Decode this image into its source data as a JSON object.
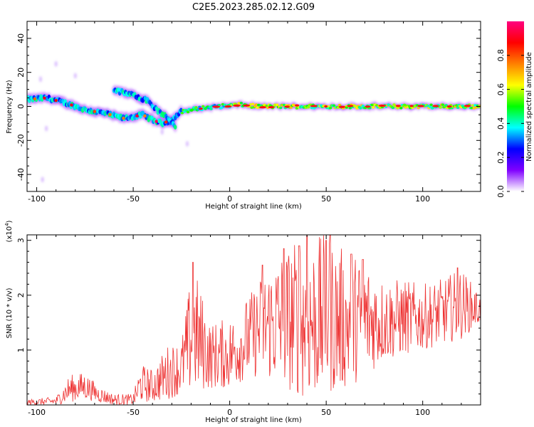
{
  "title": "C2E5.2023.285.02.12.G09",
  "chart_data": [
    {
      "type": "heatmap",
      "title": "C2E5.2023.285.02.12.G09",
      "xlabel": "Height of straight line (km)",
      "ylabel": "Frequency (Hz)",
      "xlim": [
        -105,
        130
      ],
      "ylim": [
        -50,
        50
      ],
      "xticks": [
        -100,
        -50,
        0,
        50,
        100
      ],
      "yticks": [
        -40,
        -20,
        0,
        20,
        40
      ],
      "colorbar": {
        "label": "Normalized spectral amplitude",
        "range": [
          0,
          1
        ],
        "ticks": [
          0.0,
          0.2,
          0.4,
          0.6,
          0.8
        ],
        "tick_labels": [
          "0.0",
          "0.2",
          "0.4",
          "0.6",
          "0.8"
        ],
        "colormap": [
          "#ffffff",
          "#8000ff",
          "#0000ff",
          "#00ffff",
          "#00ff00",
          "#ffff00",
          "#ff8000",
          "#ff0000",
          "#ff0080"
        ]
      },
      "main_track": [
        {
          "x": -105,
          "y": 4
        },
        {
          "x": -95,
          "y": 5
        },
        {
          "x": -85,
          "y": 2
        },
        {
          "x": -75,
          "y": -2
        },
        {
          "x": -65,
          "y": -4
        },
        {
          "x": -55,
          "y": -7
        },
        {
          "x": -45,
          "y": -5
        },
        {
          "x": -40,
          "y": -8
        },
        {
          "x": -35,
          "y": -10
        },
        {
          "x": -30,
          "y": -8
        },
        {
          "x": -25,
          "y": -3
        },
        {
          "x": -15,
          "y": -1
        },
        {
          "x": -5,
          "y": 0
        },
        {
          "x": 5,
          "y": 1
        },
        {
          "x": 15,
          "y": 0
        },
        {
          "x": 30,
          "y": 0
        },
        {
          "x": 50,
          "y": 0
        },
        {
          "x": 70,
          "y": 0
        },
        {
          "x": 90,
          "y": 0
        },
        {
          "x": 110,
          "y": 0
        },
        {
          "x": 130,
          "y": 0
        }
      ],
      "secondary_track": [
        {
          "x": -60,
          "y": 10
        },
        {
          "x": -55,
          "y": 8
        },
        {
          "x": -48,
          "y": 6
        },
        {
          "x": -42,
          "y": 3
        },
        {
          "x": -37,
          "y": -3
        },
        {
          "x": -32,
          "y": -7
        },
        {
          "x": -28,
          "y": -12
        }
      ],
      "scattered_points": [
        {
          "x": -90,
          "y": 25
        },
        {
          "x": -98,
          "y": 16
        },
        {
          "x": -95,
          "y": -13
        },
        {
          "x": -97,
          "y": -43
        },
        {
          "x": -80,
          "y": 18
        },
        {
          "x": -22,
          "y": -22
        },
        {
          "x": -35,
          "y": -15
        }
      ]
    },
    {
      "type": "line",
      "xlabel": "Height of straight line (km)",
      "ylabel": "SNR (10 * v/v)",
      "y_multiplier_label": "(x10",
      "y_multiplier_exp": "4",
      "y_multiplier_close": ")",
      "xlim": [
        -105,
        130
      ],
      "ylim": [
        0,
        3.1
      ],
      "xticks": [
        -100,
        -50,
        0,
        50,
        100
      ],
      "yticks": [
        1,
        2,
        3
      ],
      "color": "#ee3333",
      "envelope": [
        {
          "x": -105,
          "low": 0.0,
          "high": 0.1
        },
        {
          "x": -90,
          "low": 0.0,
          "high": 0.15
        },
        {
          "x": -83,
          "low": 0.05,
          "high": 0.55
        },
        {
          "x": -75,
          "low": 0.1,
          "high": 0.6
        },
        {
          "x": -68,
          "low": 0.05,
          "high": 0.35
        },
        {
          "x": -60,
          "low": 0.0,
          "high": 0.2
        },
        {
          "x": -50,
          "low": 0.0,
          "high": 0.2
        },
        {
          "x": -46,
          "low": 0.05,
          "high": 0.75
        },
        {
          "x": -40,
          "low": 0.05,
          "high": 0.65
        },
        {
          "x": -32,
          "low": 0.1,
          "high": 1.1
        },
        {
          "x": -25,
          "low": 0.2,
          "high": 1.2
        },
        {
          "x": -19,
          "low": 0.2,
          "high": 2.6
        },
        {
          "x": -10,
          "low": 0.3,
          "high": 1.5
        },
        {
          "x": 0,
          "low": 0.3,
          "high": 1.6
        },
        {
          "x": 10,
          "low": 0.5,
          "high": 2.0
        },
        {
          "x": 18,
          "low": 0.5,
          "high": 2.5
        },
        {
          "x": 28,
          "low": 0.3,
          "high": 2.9
        },
        {
          "x": 40,
          "low": 0.1,
          "high": 3.1
        },
        {
          "x": 52,
          "low": 0.2,
          "high": 3.1
        },
        {
          "x": 60,
          "low": 0.3,
          "high": 2.8
        },
        {
          "x": 70,
          "low": 0.5,
          "high": 2.7
        },
        {
          "x": 80,
          "low": 0.8,
          "high": 2.3
        },
        {
          "x": 90,
          "low": 0.9,
          "high": 2.3
        },
        {
          "x": 100,
          "low": 1.0,
          "high": 2.2
        },
        {
          "x": 110,
          "low": 1.1,
          "high": 2.3
        },
        {
          "x": 120,
          "low": 1.2,
          "high": 2.5
        },
        {
          "x": 130,
          "low": 1.5,
          "high": 2.0
        }
      ],
      "spikes": [
        {
          "x": -19,
          "y": 2.6
        },
        {
          "x": 17,
          "y": 2.55
        },
        {
          "x": 28,
          "y": 2.85
        },
        {
          "x": 36,
          "y": 2.9
        },
        {
          "x": 40,
          "y": 3.1
        },
        {
          "x": 50,
          "y": 3.0
        },
        {
          "x": 52,
          "y": 3.1
        },
        {
          "x": 63,
          "y": 2.75
        },
        {
          "x": 69,
          "y": 2.65
        },
        {
          "x": 118,
          "y": 2.5
        }
      ]
    }
  ]
}
